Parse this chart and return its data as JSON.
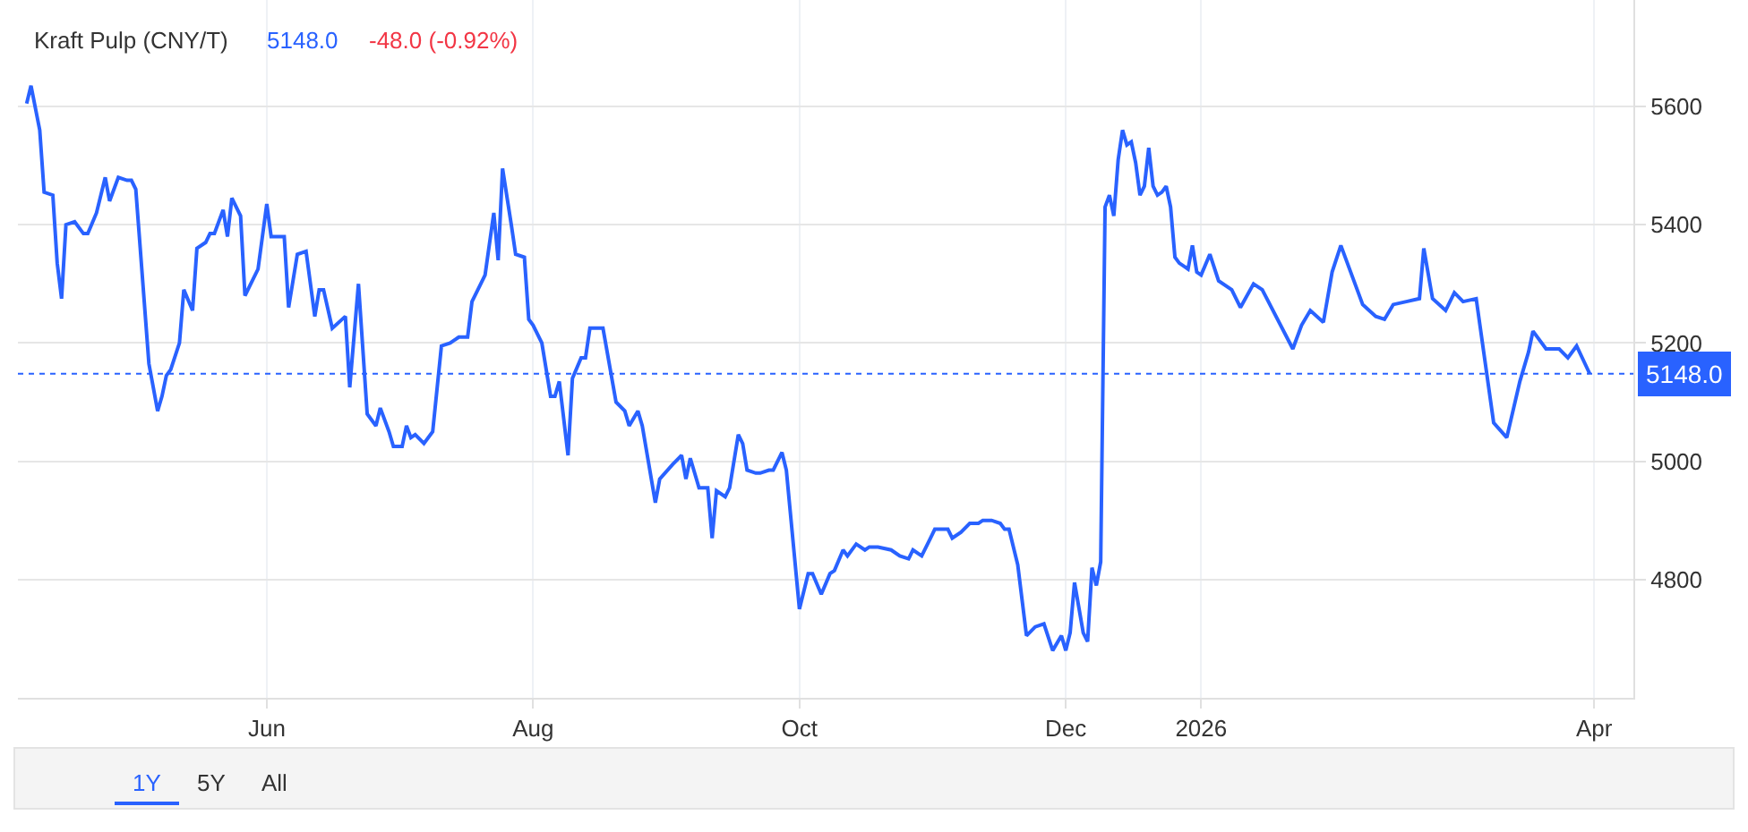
{
  "chart_data": {
    "type": "line",
    "title": "Kraft Pulp (CNY/T)",
    "annotations": [
      "5148.0",
      "-48.0 (-0.92%)",
      "1Y",
      "5Y",
      "All"
    ],
    "x": [
      "2025-04-07",
      "2025-04-08",
      "2025-04-10",
      "2025-04-11",
      "2025-04-13",
      "2025-04-14",
      "2025-04-15",
      "2025-04-16",
      "2025-04-18",
      "2025-04-20",
      "2025-04-21",
      "2025-04-23",
      "2025-04-25",
      "2025-04-26",
      "2025-04-28",
      "2025-04-30",
      "2025-05-01",
      "2025-05-02",
      "2025-05-05",
      "2025-05-07",
      "2025-05-08",
      "2025-05-09",
      "2025-05-10",
      "2025-05-12",
      "2025-05-13",
      "2025-05-15",
      "2025-05-16",
      "2025-05-18",
      "2025-05-19",
      "2025-05-20",
      "2025-05-22",
      "2025-05-23",
      "2025-05-24",
      "2025-05-26",
      "2025-05-27",
      "2025-05-30",
      "2025-06-01",
      "2025-06-02",
      "2025-06-05",
      "2025-06-06",
      "2025-06-08",
      "2025-06-10",
      "2025-06-12",
      "2025-06-13",
      "2025-06-14",
      "2025-06-16",
      "2025-06-19",
      "2025-06-20",
      "2025-06-22",
      "2025-06-24",
      "2025-06-26",
      "2025-06-27",
      "2025-06-29",
      "2025-06-30",
      "2025-07-02",
      "2025-07-03",
      "2025-07-04",
      "2025-07-05",
      "2025-07-07",
      "2025-07-09",
      "2025-07-11",
      "2025-07-13",
      "2025-07-15",
      "2025-07-17",
      "2025-07-18",
      "2025-07-20",
      "2025-07-21",
      "2025-07-23",
      "2025-07-24",
      "2025-07-25",
      "2025-07-27",
      "2025-07-28",
      "2025-07-30",
      "2025-07-31",
      "2025-08-01",
      "2025-08-03",
      "2025-08-05",
      "2025-08-06",
      "2025-08-07",
      "2025-08-09",
      "2025-08-10",
      "2025-08-12",
      "2025-08-13",
      "2025-08-14",
      "2025-08-17",
      "2025-08-20",
      "2025-08-22",
      "2025-08-23",
      "2025-08-25",
      "2025-08-26",
      "2025-08-29",
      "2025-08-30",
      "2025-09-02",
      "2025-09-04",
      "2025-09-05",
      "2025-09-06",
      "2025-09-08",
      "2025-09-10",
      "2025-09-11",
      "2025-09-12",
      "2025-09-14",
      "2025-09-15",
      "2025-09-17",
      "2025-09-18",
      "2025-09-19",
      "2025-09-21",
      "2025-09-22",
      "2025-09-24",
      "2025-09-25",
      "2025-09-27",
      "2025-09-28",
      "2025-10-01",
      "2025-10-03",
      "2025-10-04",
      "2025-10-06",
      "2025-10-08",
      "2025-10-09",
      "2025-10-11",
      "2025-10-12",
      "2025-10-14",
      "2025-10-16",
      "2025-10-17",
      "2025-10-19",
      "2025-10-22",
      "2025-10-24",
      "2025-10-26",
      "2025-10-27",
      "2025-10-29",
      "2025-10-31",
      "2025-11-01",
      "2025-11-04",
      "2025-11-05",
      "2025-11-07",
      "2025-11-09",
      "2025-11-11",
      "2025-11-12",
      "2025-11-14",
      "2025-11-16",
      "2025-11-17",
      "2025-11-18",
      "2025-11-20",
      "2025-11-22",
      "2025-11-24",
      "2025-11-26",
      "2025-11-28",
      "2025-11-30",
      "2025-12-01",
      "2025-12-02",
      "2025-12-03",
      "2025-12-05",
      "2025-12-06",
      "2025-12-07",
      "2025-12-08",
      "2025-12-09",
      "2025-12-10",
      "2025-12-11",
      "2025-12-12",
      "2025-12-13",
      "2025-12-14",
      "2025-12-15",
      "2025-12-16",
      "2025-12-17",
      "2025-12-18",
      "2025-12-19",
      "2025-12-20",
      "2025-12-21",
      "2025-12-22",
      "2025-12-23",
      "2025-12-24",
      "2025-12-25",
      "2025-12-26",
      "2025-12-27",
      "2025-12-28",
      "2025-12-29",
      "2025-12-30",
      "2025-12-31",
      "2026-01-01",
      "2026-01-03",
      "2026-01-05",
      "2026-01-08",
      "2026-01-10",
      "2026-01-13",
      "2026-01-15",
      "2026-01-22",
      "2026-01-24",
      "2026-01-26",
      "2026-01-29",
      "2026-01-31",
      "2026-02-02",
      "2026-02-07",
      "2026-02-10",
      "2026-02-12",
      "2026-02-14",
      "2026-02-17",
      "2026-02-20",
      "2026-02-21",
      "2026-02-23",
      "2026-02-26",
      "2026-02-28",
      "2026-03-02",
      "2026-03-05",
      "2026-03-09",
      "2026-03-12",
      "2026-03-15",
      "2026-03-17",
      "2026-03-18",
      "2026-03-21",
      "2026-03-24",
      "2026-03-26",
      "2026-03-28",
      "2026-03-31"
    ],
    "series": [
      {
        "color": "#2962ff",
        "values": [
          5605,
          5635,
          5560,
          5455,
          5450,
          5335,
          5275,
          5400,
          5405,
          5385,
          5385,
          5420,
          5480,
          5440,
          5480,
          5475,
          5475,
          5460,
          5165,
          5085,
          5110,
          5145,
          5155,
          5200,
          5290,
          5255,
          5360,
          5370,
          5385,
          5385,
          5425,
          5380,
          5445,
          5415,
          5280,
          5325,
          5435,
          5380,
          5380,
          5260,
          5350,
          5355,
          5245,
          5290,
          5290,
          5225,
          5245,
          5125,
          5300,
          5080,
          5060,
          5090,
          5050,
          5025,
          5025,
          5060,
          5040,
          5045,
          5030,
          5050,
          5195,
          5200,
          5210,
          5210,
          5270,
          5300,
          5315,
          5420,
          5340,
          5495,
          5400,
          5350,
          5345,
          5240,
          5230,
          5200,
          5110,
          5110,
          5135,
          5010,
          5140,
          5175,
          5175,
          5225,
          5225,
          5100,
          5085,
          5060,
          5085,
          5060,
          4930,
          4970,
          4995,
          5010,
          4970,
          5005,
          4955,
          4955,
          4870,
          4950,
          4940,
          4955,
          5045,
          5030,
          4985,
          4980,
          4980,
          4985,
          4985,
          5015,
          4985,
          4750,
          4810,
          4810,
          4775,
          4810,
          4815,
          4850,
          4840,
          4860,
          4850,
          4855,
          4855,
          4850,
          4840,
          4835,
          4850,
          4840,
          4870,
          4885,
          4885,
          4870,
          4880,
          4895,
          4895,
          4900,
          4900,
          4895,
          4885,
          4885,
          4825,
          4705,
          4720,
          4725,
          4680,
          4705,
          4680,
          4710,
          4795,
          4710,
          4695,
          4820,
          4790,
          4830,
          5430,
          5450,
          5415,
          5510,
          5560,
          5535,
          5540,
          5505,
          5450,
          5465,
          5530,
          5465,
          5450,
          5455,
          5465,
          5430,
          5345,
          5335,
          5330,
          5325,
          5365,
          5320,
          5315,
          5350,
          5305,
          5290,
          5260,
          5300,
          5290,
          5190,
          5230,
          5255,
          5235,
          5320,
          5365,
          5265,
          5245,
          5240,
          5265,
          5270,
          5275,
          5360,
          5275,
          5255,
          5285,
          5270,
          5275,
          5065,
          5040,
          5135,
          5185,
          5220,
          5190,
          5190,
          5175,
          5195,
          5148
        ]
      }
    ],
    "xlim": [
      "2025-04-05",
      "2026-04-10"
    ],
    "xticks": [
      {
        "value": "2025-06-01",
        "label": "Jun"
      },
      {
        "value": "2025-08-01",
        "label": "Aug"
      },
      {
        "value": "2025-10-01",
        "label": "Oct"
      },
      {
        "value": "2025-12-01",
        "label": "Dec"
      },
      {
        "value": "2026-01-01",
        "label": "2026"
      },
      {
        "value": "2026-04-01",
        "label": "Apr"
      }
    ],
    "ylim": [
      4600,
      5780
    ],
    "yticks": [
      4800,
      5000,
      5200,
      5400,
      5600
    ],
    "grid": true,
    "marker": "none",
    "line_style": "solid",
    "ref_lines": [
      {
        "axis": "y",
        "value": 5148,
        "label": "5148.0",
        "color": "#2962ff",
        "line_style": "dotted"
      }
    ]
  }
}
